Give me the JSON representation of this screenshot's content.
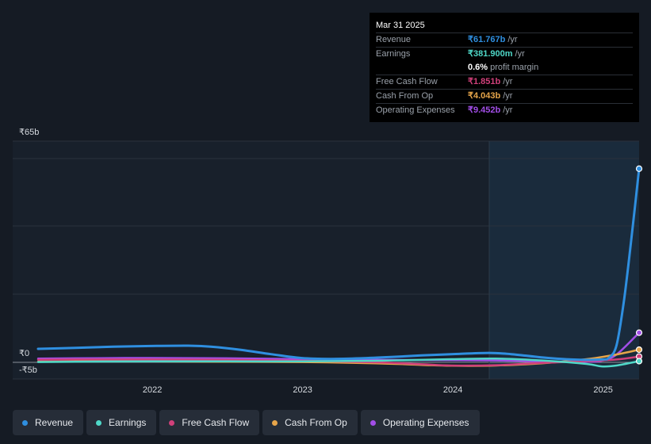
{
  "tooltip": {
    "date": "Mar 31 2025",
    "rows": [
      {
        "label": "Revenue",
        "value": "₹61.767b",
        "unit": "/yr",
        "color": "#2f8fe0"
      },
      {
        "label": "Earnings",
        "value": "₹381.900m",
        "unit": "/yr",
        "color": "#4fd8c8"
      },
      {
        "label": "",
        "value": "0.6%",
        "unit": "profit margin",
        "color": "#ffffff"
      },
      {
        "label": "Free Cash Flow",
        "value": "₹1.851b",
        "unit": "/yr",
        "color": "#d0407a"
      },
      {
        "label": "Cash From Op",
        "value": "₹4.043b",
        "unit": "/yr",
        "color": "#e6a54a"
      },
      {
        "label": "Operating Expenses",
        "value": "₹9.452b",
        "unit": "/yr",
        "color": "#a24ee8"
      }
    ]
  },
  "chart_data": {
    "type": "line",
    "y_tick_labels": [
      "₹65b",
      "₹0",
      "-₹5b"
    ],
    "x_tick_labels": [
      "2022",
      "2023",
      "2024",
      "2025"
    ],
    "ylim": [
      -5,
      65
    ],
    "xlim": [
      2021.2,
      2025.25
    ],
    "series": [
      {
        "name": "Revenue",
        "color": "#2f8fe0",
        "x": [
          2021.25,
          2021.5,
          2021.75,
          2022.0,
          2022.25,
          2022.4,
          2022.6,
          2022.8,
          2023.0,
          2023.2,
          2023.4,
          2023.6,
          2023.8,
          2024.0,
          2024.25,
          2024.4,
          2024.6,
          2024.8,
          2025.0,
          2025.05,
          2025.1,
          2025.15,
          2025.2,
          2025.25
        ],
        "y": [
          4.3,
          4.6,
          5.0,
          5.2,
          5.3,
          5.0,
          4.0,
          2.6,
          1.4,
          1.1,
          1.3,
          1.7,
          2.2,
          2.6,
          3.0,
          2.6,
          1.6,
          0.9,
          0.9,
          1.5,
          5.5,
          20.0,
          40.0,
          61.767
        ]
      },
      {
        "name": "Earnings",
        "color": "#4fd8c8",
        "x": [
          2021.25,
          2021.5,
          2022.0,
          2022.5,
          2023.0,
          2023.5,
          2024.0,
          2024.3,
          2024.6,
          2024.9,
          2025.0,
          2025.1,
          2025.25
        ],
        "y": [
          0.1,
          0.2,
          0.3,
          0.3,
          0.3,
          0.5,
          1.0,
          1.2,
          0.6,
          -0.5,
          -1.3,
          -1.0,
          0.382
        ]
      },
      {
        "name": "Free Cash Flow",
        "color": "#d0407a",
        "x": [
          2021.25,
          2021.5,
          2022.0,
          2022.5,
          2023.0,
          2023.5,
          2023.8,
          2024.0,
          2024.3,
          2024.6,
          2024.9,
          2025.1,
          2025.25
        ],
        "y": [
          0.8,
          0.9,
          0.9,
          0.8,
          0.5,
          0.0,
          -0.6,
          -1.0,
          -0.9,
          -0.2,
          0.4,
          0.9,
          1.851
        ]
      },
      {
        "name": "Cash From Op",
        "color": "#e6a54a",
        "x": [
          2021.25,
          2021.5,
          2022.0,
          2022.5,
          2023.0,
          2023.5,
          2023.8,
          2024.0,
          2024.3,
          2024.6,
          2024.9,
          2025.1,
          2025.25
        ],
        "y": [
          0.2,
          0.3,
          0.3,
          0.2,
          0.1,
          -0.3,
          -0.8,
          -1.1,
          -1.0,
          -0.3,
          1.0,
          2.5,
          4.043
        ]
      },
      {
        "name": "Operating Expenses",
        "color": "#a24ee8",
        "x": [
          2021.25,
          2021.5,
          2022.0,
          2022.5,
          2023.0,
          2023.5,
          2024.0,
          2024.3,
          2024.6,
          2024.9,
          2025.0,
          2025.1,
          2025.25
        ],
        "y": [
          1.2,
          1.3,
          1.4,
          1.3,
          1.0,
          0.8,
          0.7,
          0.6,
          0.3,
          0.2,
          0.5,
          2.5,
          9.452
        ]
      }
    ]
  },
  "legend": [
    {
      "label": "Revenue",
      "color": "#2f8fe0"
    },
    {
      "label": "Earnings",
      "color": "#4fd8c8"
    },
    {
      "label": "Free Cash Flow",
      "color": "#d0407a"
    },
    {
      "label": "Cash From Op",
      "color": "#e6a54a"
    },
    {
      "label": "Operating Expenses",
      "color": "#a24ee8"
    }
  ]
}
